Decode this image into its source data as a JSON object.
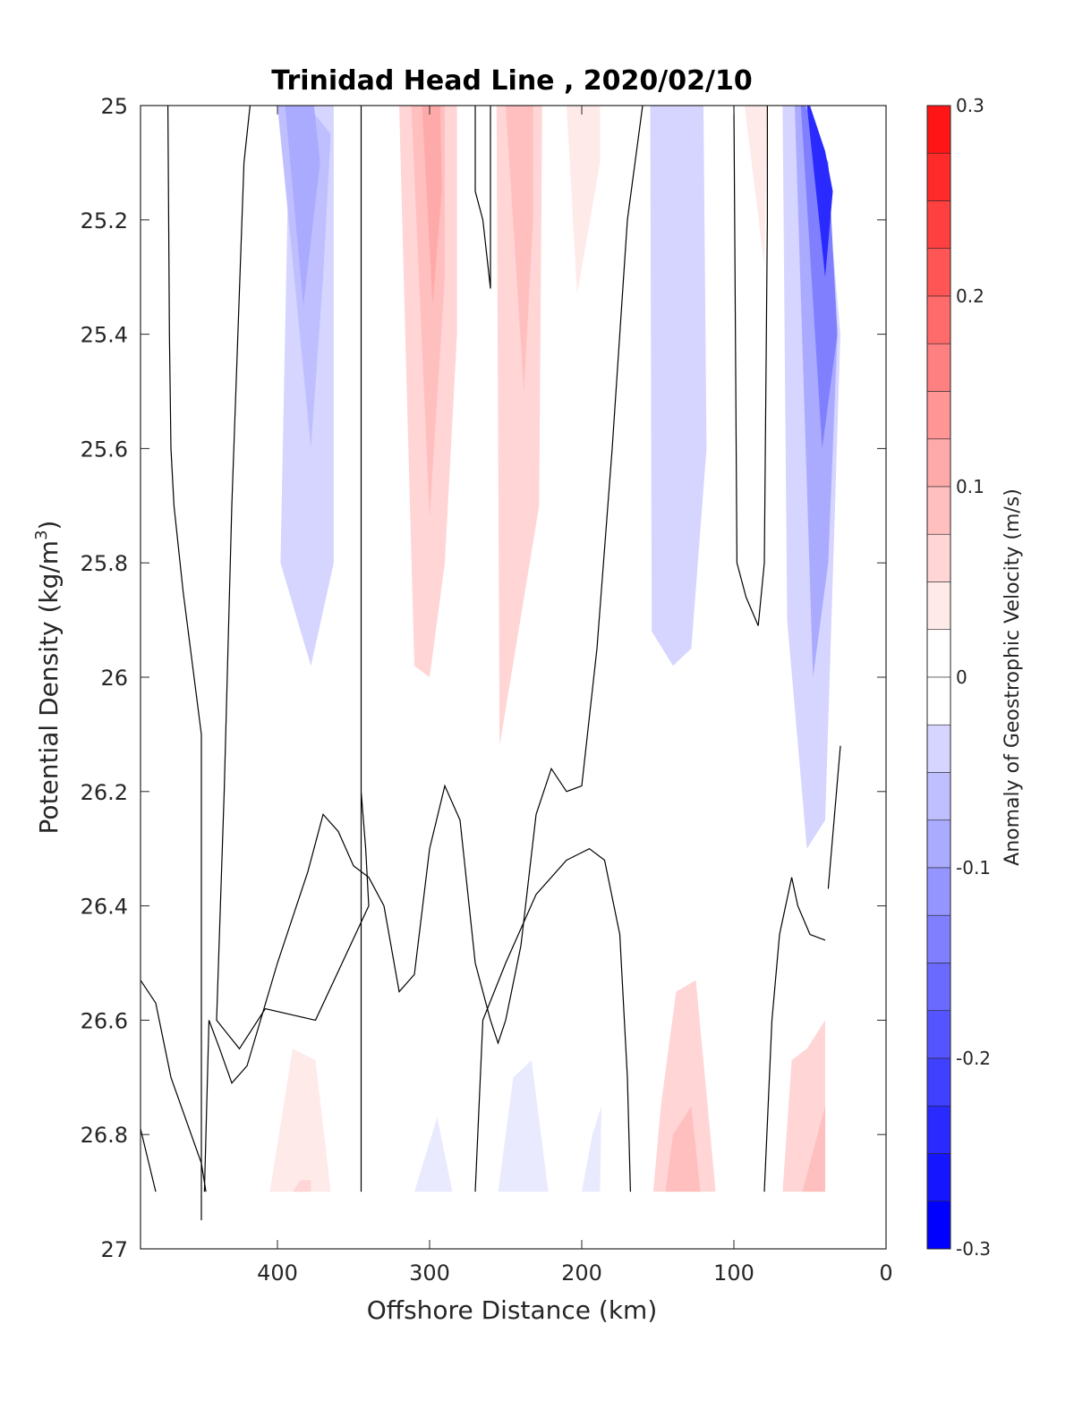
{
  "chart_data": {
    "type": "contour",
    "title": "Trinidad Head Line , 2020/02/10",
    "xlabel": "Offshore Distance (km)",
    "ylabel": "Potential Density (kg/m",
    "ylabel_superscript": "3",
    "ylabel_suffix": ")",
    "xlim": [
      490,
      0
    ],
    "ylim": [
      25,
      27
    ],
    "y_reversed": true,
    "x_ticks": [
      400,
      300,
      200,
      100,
      0
    ],
    "x_tick_labels": [
      "400",
      "300",
      "200",
      "100",
      "0"
    ],
    "y_ticks": [
      25,
      25.2,
      25.4,
      25.6,
      25.8,
      26,
      26.2,
      26.4,
      26.6,
      26.8,
      27
    ],
    "y_tick_labels": [
      "25",
      "25.2",
      "25.4",
      "25.6",
      "25.8",
      "26",
      "26.2",
      "26.4",
      "26.6",
      "26.8",
      "27"
    ],
    "colorbar": {
      "label": "Anomaly of Geostrophic Velocity (m/s)",
      "range": [
        -0.3,
        0.3
      ],
      "step": 0.025,
      "ticks": [
        0.3,
        0.2,
        0.1,
        0,
        -0.1,
        -0.2,
        -0.3
      ],
      "tick_labels": [
        "0.3",
        "0.2",
        "0.1",
        "0",
        "-0.1",
        "-0.2",
        "-0.3"
      ],
      "color_positive": "#ff0000",
      "color_negative": "#0000ff",
      "color_zero": "#ffffff"
    },
    "filled_regions": [
      {
        "name": "blue-core-400",
        "level": -0.04,
        "points": [
          [
            407,
            25
          ],
          [
            392,
            25
          ],
          [
            398,
            25.8
          ],
          [
            378,
            25.98
          ],
          [
            363,
            25.8
          ],
          [
            363,
            25
          ],
          [
            407,
            25
          ]
        ]
      },
      {
        "name": "blue-core-400-mid",
        "level": -0.07,
        "points": [
          [
            400,
            25
          ],
          [
            378,
            25.6
          ],
          [
            370,
            25.3
          ],
          [
            365,
            25.05
          ],
          [
            380,
            25
          ],
          [
            400,
            25
          ]
        ]
      },
      {
        "name": "blue-core-400-deep",
        "level": -0.09,
        "points": [
          [
            395,
            25
          ],
          [
            383,
            25.35
          ],
          [
            372,
            25.1
          ],
          [
            376,
            25
          ],
          [
            395,
            25
          ]
        ]
      },
      {
        "name": "red-core-300",
        "level": 0.04,
        "points": [
          [
            320,
            25
          ],
          [
            315,
            25.5
          ],
          [
            310,
            25.98
          ],
          [
            300,
            26.0
          ],
          [
            290,
            25.8
          ],
          [
            282,
            25.4
          ],
          [
            282,
            25
          ],
          [
            320,
            25
          ]
        ]
      },
      {
        "name": "red-core-300-mid",
        "level": 0.07,
        "points": [
          [
            312,
            25
          ],
          [
            300,
            25.72
          ],
          [
            290,
            25.3
          ],
          [
            290,
            25
          ],
          [
            312,
            25
          ]
        ]
      },
      {
        "name": "red-core-300-deep",
        "level": 0.09,
        "points": [
          [
            305,
            25
          ],
          [
            298,
            25.35
          ],
          [
            292,
            25.15
          ],
          [
            293,
            25
          ],
          [
            305,
            25
          ]
        ]
      },
      {
        "name": "red-core-240",
        "level": 0.04,
        "points": [
          [
            256,
            25
          ],
          [
            254,
            26.12
          ],
          [
            228,
            25.7
          ],
          [
            226,
            25
          ],
          [
            256,
            25
          ]
        ]
      },
      {
        "name": "red-core-240-mid",
        "level": 0.07,
        "points": [
          [
            250,
            25
          ],
          [
            238,
            25.5
          ],
          [
            232,
            25.2
          ],
          [
            232,
            25
          ],
          [
            250,
            25
          ]
        ]
      },
      {
        "name": "red-core-200",
        "level": 0.03,
        "points": [
          [
            210,
            25
          ],
          [
            203,
            25.33
          ],
          [
            188,
            25.1
          ],
          [
            188,
            25
          ],
          [
            210,
            25
          ]
        ]
      },
      {
        "name": "blue-core-140",
        "level": -0.04,
        "points": [
          [
            155,
            25
          ],
          [
            154,
            25.92
          ],
          [
            140,
            25.98
          ],
          [
            128,
            25.95
          ],
          [
            118,
            25.6
          ],
          [
            120,
            25
          ],
          [
            155,
            25
          ]
        ]
      },
      {
        "name": "blue-core-140-mid",
        "level": -0.06,
        "points": [
          [
            145,
            25
          ],
          [
            137,
            25.55
          ],
          [
            128,
            25.3
          ],
          [
            130,
            25
          ],
          [
            145,
            25
          ]
        ]
      },
      {
        "name": "red-core-90",
        "level": 0.03,
        "points": [
          [
            93,
            25
          ],
          [
            80,
            25.28
          ],
          [
            78,
            25
          ],
          [
            93,
            25
          ]
        ]
      },
      {
        "name": "blue-coast-outer",
        "level": -0.04,
        "points": [
          [
            68,
            25
          ],
          [
            65,
            25.9
          ],
          [
            52,
            26.3
          ],
          [
            40,
            26.25
          ],
          [
            30,
            25.4
          ],
          [
            40,
            25.1
          ],
          [
            50,
            25
          ],
          [
            68,
            25
          ]
        ]
      },
      {
        "name": "blue-coast-mid",
        "level": -0.1,
        "points": [
          [
            60,
            25
          ],
          [
            48,
            26.0
          ],
          [
            38,
            25.8
          ],
          [
            32,
            25.4
          ],
          [
            38,
            25.1
          ],
          [
            55,
            25
          ],
          [
            60,
            25
          ]
        ]
      },
      {
        "name": "blue-coast-inner",
        "level": -0.16,
        "points": [
          [
            56,
            25
          ],
          [
            42,
            25.6
          ],
          [
            32,
            25.4
          ],
          [
            38,
            25.1
          ],
          [
            53,
            25
          ],
          [
            56,
            25
          ]
        ]
      },
      {
        "name": "blue-coast-core",
        "level": -0.24,
        "points": [
          [
            52,
            25
          ],
          [
            40,
            25.3
          ],
          [
            35,
            25.15
          ],
          [
            40,
            25.08
          ],
          [
            50,
            25
          ],
          [
            52,
            25
          ]
        ]
      },
      {
        "name": "red-deep-380",
        "level": 0.03,
        "points": [
          [
            405,
            26.9
          ],
          [
            390,
            26.65
          ],
          [
            375,
            26.67
          ],
          [
            365,
            26.9
          ],
          [
            405,
            26.9
          ]
        ]
      },
      {
        "name": "red-deep-380-core",
        "level": 0.06,
        "points": [
          [
            390,
            26.9
          ],
          [
            385,
            26.88
          ],
          [
            378,
            26.88
          ],
          [
            378,
            26.9
          ],
          [
            390,
            26.9
          ]
        ]
      },
      {
        "name": "blue-deep-290",
        "level": -0.03,
        "points": [
          [
            310,
            26.9
          ],
          [
            295,
            26.77
          ],
          [
            285,
            26.9
          ],
          [
            310,
            26.9
          ]
        ]
      },
      {
        "name": "blue-deep-240",
        "level": -0.03,
        "points": [
          [
            255,
            26.9
          ],
          [
            245,
            26.7
          ],
          [
            233,
            26.67
          ],
          [
            222,
            26.9
          ],
          [
            255,
            26.9
          ]
        ]
      },
      {
        "name": "blue-deep-200",
        "level": -0.03,
        "points": [
          [
            200,
            26.9
          ],
          [
            193,
            26.8
          ],
          [
            187,
            26.75
          ],
          [
            188,
            26.9
          ],
          [
            200,
            26.9
          ]
        ]
      },
      {
        "name": "red-deep-130",
        "level": 0.04,
        "points": [
          [
            153,
            26.9
          ],
          [
            148,
            26.75
          ],
          [
            138,
            26.55
          ],
          [
            125,
            26.53
          ],
          [
            112,
            26.9
          ],
          [
            153,
            26.9
          ]
        ]
      },
      {
        "name": "red-deep-130-core",
        "level": 0.07,
        "points": [
          [
            145,
            26.9
          ],
          [
            140,
            26.8
          ],
          [
            128,
            26.75
          ],
          [
            122,
            26.9
          ],
          [
            145,
            26.9
          ]
        ]
      },
      {
        "name": "red-deep-coast",
        "level": 0.04,
        "points": [
          [
            68,
            26.9
          ],
          [
            62,
            26.67
          ],
          [
            52,
            26.65
          ],
          [
            40,
            26.6
          ],
          [
            40,
            26.9
          ],
          [
            68,
            26.9
          ]
        ]
      },
      {
        "name": "red-deep-coast-core",
        "level": 0.08,
        "points": [
          [
            55,
            26.9
          ],
          [
            45,
            26.8
          ],
          [
            40,
            26.75
          ],
          [
            40,
            26.9
          ],
          [
            55,
            26.9
          ]
        ]
      }
    ],
    "zero_contours": [
      {
        "name": "zero-contour-far-offshore",
        "points": [
          [
            472,
            25
          ],
          [
            471,
            25.4
          ],
          [
            470,
            25.6
          ],
          [
            468,
            25.7
          ],
          [
            462,
            25.85
          ],
          [
            450,
            26.1
          ],
          [
            450,
            26.95
          ]
        ]
      },
      {
        "name": "zero-contour-380",
        "points": [
          [
            418,
            25
          ],
          [
            422,
            25.1
          ],
          [
            430,
            25.7
          ],
          [
            435,
            26.2
          ],
          [
            440,
            26.6
          ],
          [
            425,
            26.65
          ],
          [
            408,
            26.58
          ],
          [
            375,
            26.6
          ],
          [
            340,
            26.4
          ],
          [
            342,
            26.3
          ],
          [
            345,
            26.2
          ],
          [
            345,
            26.9
          ],
          [
            345,
            25.8
          ],
          [
            345,
            25
          ]
        ]
      },
      {
        "name": "zero-contour-deep-left",
        "points": [
          [
            490,
            26.53
          ],
          [
            480,
            26.57
          ],
          [
            470,
            26.7
          ],
          [
            450,
            26.85
          ],
          [
            447,
            26.9
          ]
        ]
      },
      {
        "name": "zero-contour-deep-left-2",
        "points": [
          [
            490,
            26.79
          ],
          [
            480,
            26.9
          ]
        ]
      },
      {
        "name": "zero-contour-mid-band",
        "points": [
          [
            448,
            26.9
          ],
          [
            445,
            26.6
          ],
          [
            438,
            26.65
          ],
          [
            430,
            26.71
          ],
          [
            420,
            26.68
          ],
          [
            400,
            26.5
          ],
          [
            380,
            26.34
          ],
          [
            370,
            26.24
          ],
          [
            360,
            26.27
          ],
          [
            350,
            26.33
          ],
          [
            340,
            26.35
          ],
          [
            330,
            26.4
          ],
          [
            320,
            26.55
          ],
          [
            310,
            26.52
          ],
          [
            300,
            26.3
          ],
          [
            290,
            26.19
          ],
          [
            280,
            26.25
          ],
          [
            270,
            26.5
          ],
          [
            260,
            26.6
          ],
          [
            255,
            26.64
          ],
          [
            250,
            26.6
          ],
          [
            240,
            26.47
          ],
          [
            230,
            26.24
          ],
          [
            220,
            26.16
          ],
          [
            210,
            26.2
          ],
          [
            200,
            26.19
          ],
          [
            190,
            25.95
          ],
          [
            180,
            25.6
          ],
          [
            170,
            25.2
          ],
          [
            160,
            25
          ]
        ]
      },
      {
        "name": "zero-contour-270",
        "points": [
          [
            270,
            25
          ],
          [
            270,
            25.15
          ],
          [
            265,
            25.2
          ],
          [
            260,
            25.32
          ],
          [
            260,
            25
          ]
        ]
      },
      {
        "name": "zero-contour-deep-right",
        "points": [
          [
            168,
            26.9
          ],
          [
            170,
            26.7
          ],
          [
            175,
            26.45
          ],
          [
            185,
            26.32
          ],
          [
            195,
            26.3
          ],
          [
            210,
            26.32
          ],
          [
            230,
            26.38
          ],
          [
            250,
            26.5
          ],
          [
            265,
            26.6
          ],
          [
            270,
            26.9
          ]
        ]
      },
      {
        "name": "zero-contour-100",
        "points": [
          [
            100,
            25
          ],
          [
            98,
            25.8
          ],
          [
            92,
            25.86
          ],
          [
            84,
            25.91
          ],
          [
            80,
            25.8
          ],
          [
            78,
            25.2
          ],
          [
            78,
            25
          ]
        ]
      },
      {
        "name": "zero-contour-coast",
        "points": [
          [
            80,
            26.9
          ],
          [
            75,
            26.6
          ],
          [
            70,
            26.45
          ],
          [
            62,
            26.35
          ],
          [
            58,
            26.4
          ],
          [
            50,
            26.45
          ],
          [
            40,
            26.46
          ]
        ]
      },
      {
        "name": "zero-contour-coast-2",
        "points": [
          [
            38,
            26.37
          ],
          [
            30,
            26.12
          ]
        ]
      }
    ]
  }
}
